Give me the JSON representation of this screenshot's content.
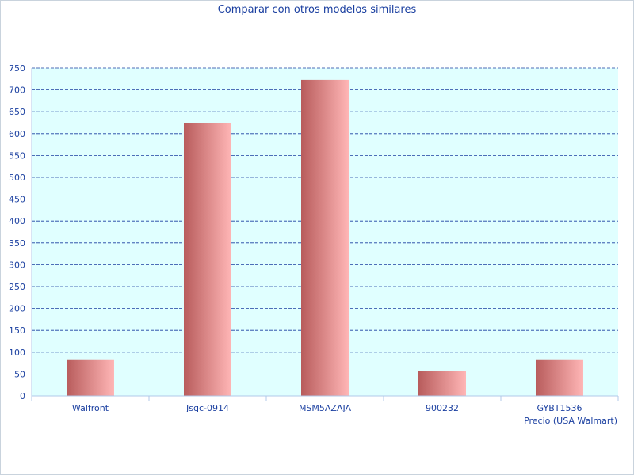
{
  "chart_data": {
    "type": "bar",
    "title": "Comparar con otros modelos similares",
    "xlabel": "Precio (USA Walmart)",
    "ylabel": "",
    "categories": [
      "Walfront",
      "Jsqc-0914",
      "MSM5AZAJA",
      "900232",
      "GYBT1536"
    ],
    "values": [
      82,
      625,
      723,
      57,
      82
    ],
    "ylim": [
      0,
      750
    ],
    "yticks": [
      0,
      50,
      100,
      150,
      200,
      250,
      300,
      350,
      400,
      450,
      500,
      550,
      600,
      650,
      700,
      750
    ],
    "grid": true,
    "legend": "none",
    "colors": {
      "plot_background": "#e0ffff",
      "bar_dark": "#b85c5c",
      "bar_light": "#ffb6b6",
      "grid": "#1a3fa0",
      "text": "#1a3fa0",
      "axis": "#b0c8e8"
    }
  }
}
